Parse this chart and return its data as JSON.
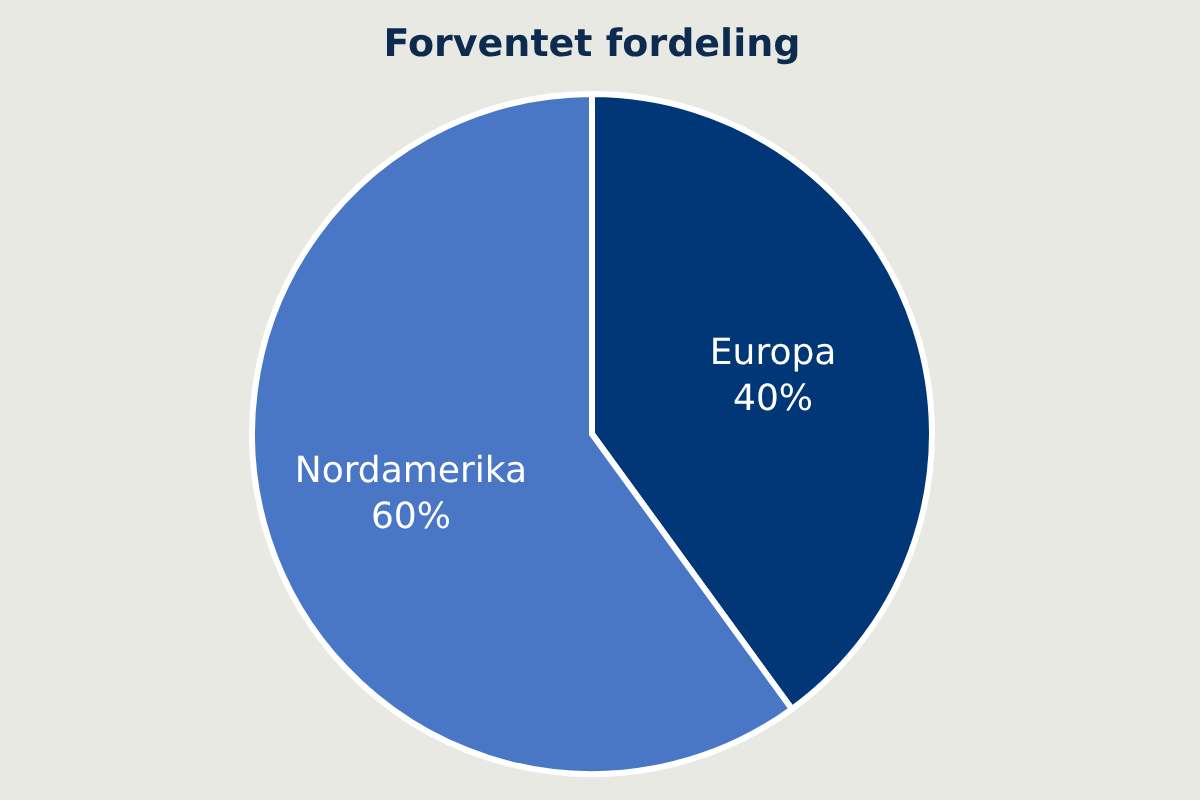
{
  "chart_data": {
    "type": "pie",
    "title": "Forventet fordeling",
    "categories": [
      "Europa",
      "Nordamerika"
    ],
    "values": [
      40,
      60
    ],
    "value_labels": [
      "40%",
      "60%"
    ],
    "colors": [
      "#023777",
      "#4a76c6"
    ],
    "legend": false
  }
}
